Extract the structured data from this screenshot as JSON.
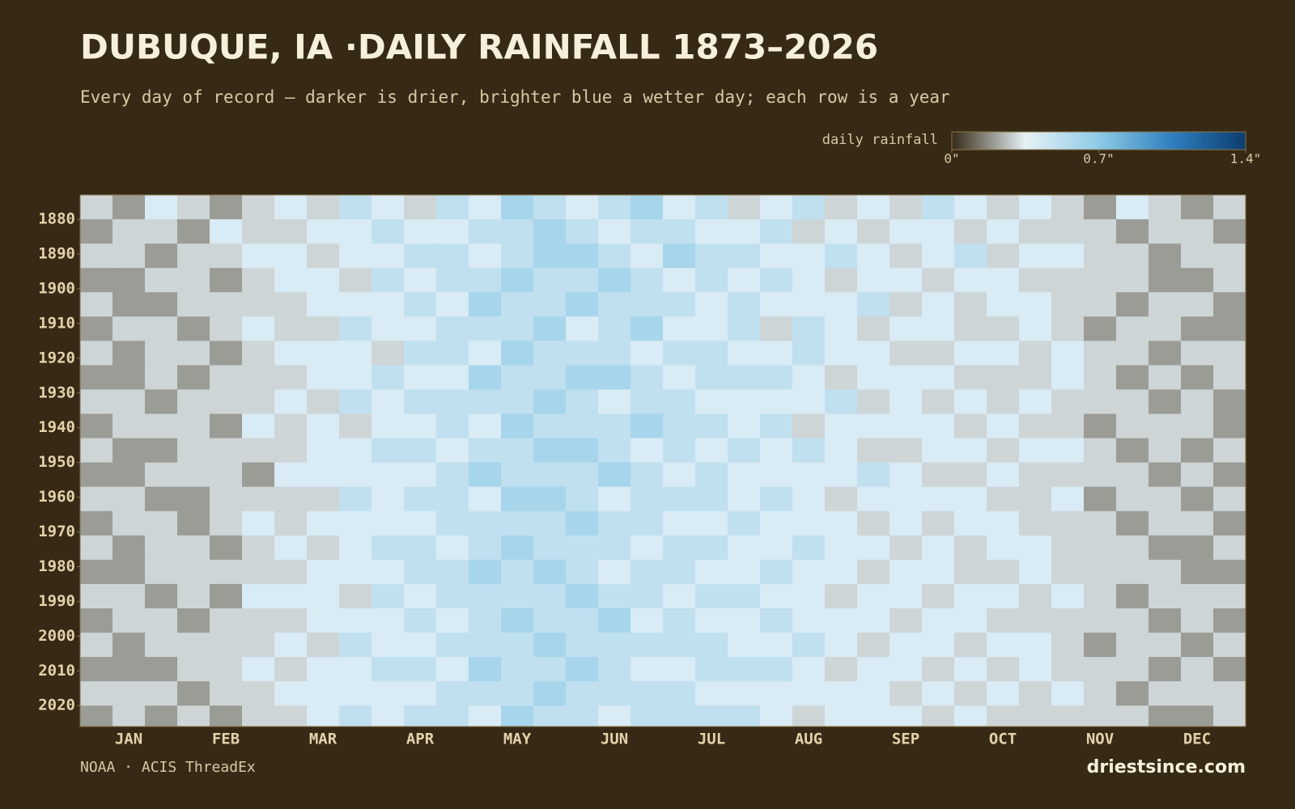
{
  "chart_data": {
    "type": "heatmap",
    "title": "DUBUQUE, IA ·DAILY RAINFALL 1873–2026",
    "subtitle": "Every day of record — darker is drier, brighter blue a wetter day; each row is a year",
    "legend_label": "daily rainfall",
    "colors": [
      "#362a16",
      "#e6f1f6",
      "#8ecae6",
      "#2f7fbf",
      "#0b3d6e"
    ],
    "clim": [
      0,
      1.4
    ],
    "cticks": [
      {
        "value": 0,
        "label": "0\""
      },
      {
        "value": 0.7,
        "label": "0.7\""
      },
      {
        "value": 1.4,
        "label": "1.4\""
      }
    ],
    "categories": [
      "JAN",
      "FEB",
      "MAR",
      "APR",
      "MAY",
      "JUN",
      "JUL",
      "AUG",
      "SEP",
      "OCT",
      "NOV",
      "DEC"
    ],
    "ylim": [
      1873,
      2026
    ],
    "yticks": [
      1880,
      1890,
      1900,
      1910,
      1920,
      1930,
      1940,
      1950,
      1960,
      1970,
      1980,
      1990,
      2000,
      2010,
      2020
    ],
    "y": [
      1873,
      1880,
      1887,
      1894,
      1901,
      1908,
      1915,
      1922,
      1929,
      1936,
      1943,
      1950,
      1957,
      1964,
      1971,
      1978,
      1985,
      1992,
      1999,
      2006,
      2013,
      2020
    ],
    "values": [
      [
        0.3,
        0.2,
        0.4,
        0.3,
        0.2,
        0.3,
        0.4,
        0.3,
        0.5,
        0.4,
        0.3,
        0.5,
        0.4,
        0.6,
        0.5,
        0.4,
        0.5,
        0.6,
        0.4,
        0.5,
        0.3,
        0.4,
        0.5,
        0.3,
        0.4,
        0.3,
        0.5,
        0.4,
        0.3,
        0.4,
        0.3,
        0.2,
        0.4,
        0.3,
        0.2,
        0.3
      ],
      [
        0.2,
        0.3,
        0.3,
        0.2,
        0.4,
        0.3,
        0.3,
        0.4,
        0.4,
        0.5,
        0.4,
        0.4,
        0.5,
        0.5,
        0.6,
        0.5,
        0.4,
        0.5,
        0.5,
        0.4,
        0.4,
        0.5,
        0.3,
        0.4,
        0.3,
        0.4,
        0.4,
        0.3,
        0.4,
        0.3,
        0.3,
        0.3,
        0.2,
        0.3,
        0.3,
        0.2
      ],
      [
        0.3,
        0.3,
        0.2,
        0.3,
        0.3,
        0.4,
        0.4,
        0.3,
        0.4,
        0.4,
        0.5,
        0.5,
        0.4,
        0.5,
        0.6,
        0.6,
        0.5,
        0.4,
        0.6,
        0.5,
        0.5,
        0.4,
        0.4,
        0.5,
        0.4,
        0.3,
        0.4,
        0.5,
        0.3,
        0.4,
        0.4,
        0.3,
        0.3,
        0.2,
        0.3,
        0.3
      ],
      [
        0.2,
        0.2,
        0.3,
        0.3,
        0.2,
        0.3,
        0.4,
        0.4,
        0.3,
        0.5,
        0.4,
        0.5,
        0.5,
        0.6,
        0.5,
        0.5,
        0.6,
        0.5,
        0.4,
        0.5,
        0.4,
        0.5,
        0.4,
        0.3,
        0.4,
        0.4,
        0.3,
        0.4,
        0.4,
        0.3,
        0.3,
        0.3,
        0.3,
        0.2,
        0.2,
        0.3
      ],
      [
        0.3,
        0.2,
        0.2,
        0.3,
        0.3,
        0.3,
        0.3,
        0.4,
        0.4,
        0.4,
        0.5,
        0.4,
        0.6,
        0.5,
        0.5,
        0.6,
        0.5,
        0.5,
        0.5,
        0.4,
        0.5,
        0.4,
        0.4,
        0.4,
        0.5,
        0.3,
        0.4,
        0.3,
        0.4,
        0.4,
        0.3,
        0.3,
        0.2,
        0.3,
        0.3,
        0.2
      ],
      [
        0.2,
        0.3,
        0.3,
        0.2,
        0.3,
        0.4,
        0.3,
        0.3,
        0.5,
        0.4,
        0.4,
        0.5,
        0.5,
        0.5,
        0.6,
        0.4,
        0.5,
        0.6,
        0.4,
        0.4,
        0.5,
        0.3,
        0.5,
        0.4,
        0.3,
        0.4,
        0.4,
        0.3,
        0.3,
        0.4,
        0.3,
        0.2,
        0.3,
        0.3,
        0.2,
        0.2
      ],
      [
        0.3,
        0.2,
        0.3,
        0.3,
        0.2,
        0.3,
        0.4,
        0.4,
        0.4,
        0.3,
        0.5,
        0.5,
        0.4,
        0.6,
        0.5,
        0.5,
        0.5,
        0.4,
        0.5,
        0.5,
        0.4,
        0.4,
        0.5,
        0.4,
        0.4,
        0.3,
        0.3,
        0.4,
        0.4,
        0.3,
        0.4,
        0.3,
        0.3,
        0.2,
        0.3,
        0.3
      ],
      [
        0.2,
        0.2,
        0.3,
        0.2,
        0.3,
        0.3,
        0.3,
        0.4,
        0.4,
        0.5,
        0.4,
        0.4,
        0.6,
        0.5,
        0.5,
        0.6,
        0.6,
        0.5,
        0.4,
        0.5,
        0.5,
        0.5,
        0.4,
        0.3,
        0.4,
        0.4,
        0.4,
        0.3,
        0.3,
        0.3,
        0.4,
        0.3,
        0.2,
        0.3,
        0.2,
        0.3
      ],
      [
        0.3,
        0.3,
        0.2,
        0.3,
        0.3,
        0.3,
        0.4,
        0.3,
        0.5,
        0.4,
        0.5,
        0.5,
        0.5,
        0.5,
        0.6,
        0.5,
        0.4,
        0.5,
        0.5,
        0.4,
        0.4,
        0.4,
        0.4,
        0.5,
        0.3,
        0.4,
        0.3,
        0.4,
        0.3,
        0.4,
        0.3,
        0.3,
        0.3,
        0.2,
        0.3,
        0.2
      ],
      [
        0.2,
        0.3,
        0.3,
        0.3,
        0.2,
        0.4,
        0.3,
        0.4,
        0.3,
        0.4,
        0.4,
        0.5,
        0.4,
        0.6,
        0.5,
        0.5,
        0.5,
        0.6,
        0.5,
        0.5,
        0.4,
        0.5,
        0.3,
        0.4,
        0.4,
        0.4,
        0.4,
        0.3,
        0.4,
        0.3,
        0.3,
        0.2,
        0.3,
        0.3,
        0.3,
        0.2
      ],
      [
        0.3,
        0.2,
        0.2,
        0.3,
        0.3,
        0.3,
        0.3,
        0.4,
        0.4,
        0.5,
        0.5,
        0.4,
        0.5,
        0.5,
        0.6,
        0.6,
        0.5,
        0.4,
        0.5,
        0.4,
        0.5,
        0.4,
        0.5,
        0.4,
        0.3,
        0.3,
        0.4,
        0.4,
        0.3,
        0.4,
        0.4,
        0.3,
        0.2,
        0.3,
        0.2,
        0.3
      ],
      [
        0.2,
        0.2,
        0.3,
        0.3,
        0.3,
        0.2,
        0.4,
        0.4,
        0.4,
        0.4,
        0.4,
        0.5,
        0.6,
        0.5,
        0.5,
        0.5,
        0.6,
        0.5,
        0.4,
        0.5,
        0.4,
        0.4,
        0.4,
        0.4,
        0.5,
        0.4,
        0.3,
        0.3,
        0.4,
        0.3,
        0.3,
        0.3,
        0.3,
        0.2,
        0.3,
        0.2
      ],
      [
        0.3,
        0.3,
        0.2,
        0.2,
        0.3,
        0.3,
        0.3,
        0.3,
        0.5,
        0.4,
        0.5,
        0.5,
        0.4,
        0.6,
        0.6,
        0.5,
        0.4,
        0.5,
        0.5,
        0.5,
        0.4,
        0.5,
        0.4,
        0.3,
        0.4,
        0.4,
        0.4,
        0.4,
        0.3,
        0.3,
        0.4,
        0.2,
        0.3,
        0.3,
        0.2,
        0.3
      ],
      [
        0.2,
        0.3,
        0.3,
        0.2,
        0.3,
        0.4,
        0.3,
        0.4,
        0.4,
        0.4,
        0.4,
        0.5,
        0.5,
        0.5,
        0.5,
        0.6,
        0.5,
        0.5,
        0.4,
        0.4,
        0.5,
        0.4,
        0.4,
        0.4,
        0.3,
        0.4,
        0.3,
        0.4,
        0.4,
        0.3,
        0.3,
        0.3,
        0.2,
        0.3,
        0.3,
        0.2
      ],
      [
        0.3,
        0.2,
        0.3,
        0.3,
        0.2,
        0.3,
        0.4,
        0.3,
        0.4,
        0.5,
        0.5,
        0.4,
        0.5,
        0.6,
        0.5,
        0.5,
        0.5,
        0.4,
        0.5,
        0.5,
        0.4,
        0.4,
        0.5,
        0.4,
        0.4,
        0.3,
        0.4,
        0.3,
        0.4,
        0.4,
        0.3,
        0.3,
        0.3,
        0.2,
        0.2,
        0.3
      ],
      [
        0.2,
        0.2,
        0.3,
        0.3,
        0.3,
        0.3,
        0.3,
        0.4,
        0.4,
        0.4,
        0.5,
        0.5,
        0.6,
        0.5,
        0.6,
        0.5,
        0.4,
        0.5,
        0.5,
        0.4,
        0.4,
        0.5,
        0.4,
        0.4,
        0.3,
        0.4,
        0.4,
        0.3,
        0.3,
        0.4,
        0.3,
        0.3,
        0.3,
        0.3,
        0.2,
        0.2
      ],
      [
        0.3,
        0.3,
        0.2,
        0.3,
        0.2,
        0.4,
        0.4,
        0.4,
        0.3,
        0.5,
        0.4,
        0.5,
        0.5,
        0.5,
        0.5,
        0.6,
        0.5,
        0.5,
        0.4,
        0.5,
        0.5,
        0.4,
        0.4,
        0.3,
        0.4,
        0.4,
        0.3,
        0.4,
        0.4,
        0.3,
        0.4,
        0.3,
        0.2,
        0.3,
        0.3,
        0.3
      ],
      [
        0.2,
        0.3,
        0.3,
        0.2,
        0.3,
        0.3,
        0.3,
        0.4,
        0.4,
        0.4,
        0.5,
        0.4,
        0.5,
        0.6,
        0.5,
        0.5,
        0.6,
        0.4,
        0.5,
        0.4,
        0.4,
        0.5,
        0.4,
        0.4,
        0.4,
        0.3,
        0.4,
        0.4,
        0.3,
        0.3,
        0.3,
        0.3,
        0.3,
        0.2,
        0.3,
        0.2
      ],
      [
        0.3,
        0.2,
        0.3,
        0.3,
        0.3,
        0.3,
        0.4,
        0.3,
        0.5,
        0.4,
        0.4,
        0.5,
        0.5,
        0.5,
        0.6,
        0.5,
        0.5,
        0.5,
        0.5,
        0.5,
        0.4,
        0.4,
        0.5,
        0.4,
        0.3,
        0.4,
        0.4,
        0.3,
        0.4,
        0.4,
        0.3,
        0.2,
        0.3,
        0.3,
        0.2,
        0.3
      ],
      [
        0.2,
        0.2,
        0.2,
        0.3,
        0.3,
        0.4,
        0.3,
        0.4,
        0.4,
        0.5,
        0.5,
        0.4,
        0.6,
        0.5,
        0.5,
        0.6,
        0.5,
        0.4,
        0.4,
        0.5,
        0.5,
        0.5,
        0.4,
        0.3,
        0.4,
        0.4,
        0.3,
        0.4,
        0.3,
        0.4,
        0.3,
        0.3,
        0.3,
        0.2,
        0.3,
        0.2
      ],
      [
        0.3,
        0.3,
        0.3,
        0.2,
        0.3,
        0.3,
        0.4,
        0.4,
        0.4,
        0.4,
        0.4,
        0.5,
        0.5,
        0.5,
        0.6,
        0.5,
        0.5,
        0.5,
        0.5,
        0.4,
        0.4,
        0.4,
        0.4,
        0.4,
        0.4,
        0.3,
        0.4,
        0.3,
        0.4,
        0.3,
        0.4,
        0.3,
        0.2,
        0.3,
        0.3,
        0.3
      ],
      [
        0.2,
        0.3,
        0.2,
        0.3,
        0.2,
        0.3,
        0.3,
        0.4,
        0.5,
        0.4,
        0.5,
        0.5,
        0.4,
        0.6,
        0.5,
        0.5,
        0.4,
        0.5,
        0.5,
        0.5,
        0.5,
        0.4,
        0.3,
        0.4,
        0.4,
        0.4,
        0.3,
        0.4,
        0.3,
        0.3,
        0.3,
        0.3,
        0.3,
        0.2,
        0.2,
        0.3
      ]
    ],
    "source": "NOAA · ACIS ThreadEx",
    "brand": "driestsince.com"
  }
}
